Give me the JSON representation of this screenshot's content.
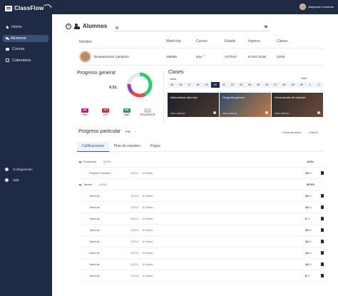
{
  "app": {
    "name": "ClassFlow"
  },
  "topbar": {
    "user_name": "Alejandra Contreras"
  },
  "sidebar": {
    "items": [
      {
        "label": "Home",
        "icon": "home-icon"
      },
      {
        "label": "Alumnos",
        "icon": "users-icon",
        "active": true
      },
      {
        "label": "Cursos",
        "icon": "book-icon"
      },
      {
        "label": "Calendario",
        "icon": "calendar-icon"
      }
    ],
    "bottom": [
      {
        "label": "Configuración",
        "icon": "gear-icon"
      },
      {
        "label": "Salir",
        "icon": "logout-icon"
      }
    ]
  },
  "header": {
    "title": "Alumnos"
  },
  "search": {
    "placeholder": ""
  },
  "student_table": {
    "headers": [
      "Nombre",
      "Matrícula",
      "Cursos",
      "Estado",
      "Ingreso",
      "Clases"
    ],
    "row": {
      "name": "Roxanna Ruiz Camacho",
      "matricula": "189356",
      "curso": "IPM",
      "curso_extra": "+3",
      "estado": "ACTIVO",
      "ingreso": "6 AGO 2018",
      "clases": "21/63"
    }
  },
  "progreso_general": {
    "title": "Progreso general",
    "value": "9.51",
    "donut_colors": [
      "#2ecc71",
      "#e74c3c",
      "#8e44ad",
      "#d7dbe6"
    ],
    "subjects": [
      {
        "code": "IPM",
        "label": "IPM",
        "color": "#c0208e"
      },
      {
        "code": "LFC",
        "label": "LFC",
        "color": "#d12b3a"
      },
      {
        "code": "IBM",
        "label": "IBM",
        "color": "#2f9e44"
      },
      {
        "code": "PEN",
        "label": "PENDIENTE",
        "color": "#c8ccd6"
      }
    ]
  },
  "clases": {
    "title": "Clases",
    "month_start": "Junio",
    "month_end": "Julio",
    "days": [
      "15",
      "16",
      "17",
      "18",
      "19",
      "20",
      "21",
      "22",
      "23",
      "24",
      "25",
      "26",
      "27",
      "28",
      "29",
      "30",
      "1",
      "2"
    ],
    "selected_day": "20",
    "cards": [
      {
        "title": "Matemáticas discretas",
        "time": "12hrs   12:00 am",
        "color1": "#1c1f2b",
        "color2": "#4b3a2f"
      },
      {
        "title": "Geografía general",
        "time": "12hrs   12:00 am",
        "color1": "#2a4b6d",
        "color2": "#c27a45"
      },
      {
        "title": "Herramientas de software",
        "time": "12hrs   12:00 am",
        "color1": "#2d2a28",
        "color2": "#6b4a3a"
      }
    ]
  },
  "progreso_particular": {
    "title": "Progreso particular",
    "course": "IPM",
    "date_label": "Fecha de Inicio",
    "date_value": "4 08/18"
  },
  "tabs": [
    "Calificaciones",
    "Plan de estudios",
    "Pagos"
  ],
  "grades": {
    "sections": [
      {
        "name": "Proyectos",
        "weight": "(60%)",
        "percent": "100%",
        "items": [
          {
            "name": "Proyecto Parcial 1",
            "date": "3/2/18",
            "time": "10:55am",
            "score": "10",
            "max": "/10"
          }
        ]
      },
      {
        "name": "Tareas",
        "weight": "(40%)",
        "percent": "95.5%",
        "items": [
          {
            "name": "Tarea ##",
            "date": "3/2/18",
            "time": "10:55am",
            "score": "10",
            "max": "/10"
          },
          {
            "name": "Tarea ##",
            "date": "3/2/18",
            "time": "10:55am",
            "score": "10",
            "max": "/10"
          },
          {
            "name": "Tarea ##",
            "date": "3/2/18",
            "time": "10:55am",
            "score": "0",
            "max": "/10"
          },
          {
            "name": "Tarea ##",
            "date": "3/2/18",
            "time": "10:55am",
            "score": "10",
            "max": "/10"
          },
          {
            "name": "Tarea ##",
            "date": "3/2/18",
            "time": "10:55am",
            "score": "10",
            "max": "/10"
          },
          {
            "name": "Tarea ##",
            "date": "3/2/18",
            "time": "10:55am",
            "score": "10",
            "max": "/10"
          },
          {
            "name": "Tarea ##",
            "date": "3/2/18",
            "time": "10:55am",
            "score": "10",
            "max": "/10"
          },
          {
            "name": "Tarea ##",
            "date": "3/2/18",
            "time": "10:55am",
            "score": "0",
            "max": "/10"
          }
        ]
      }
    ]
  }
}
